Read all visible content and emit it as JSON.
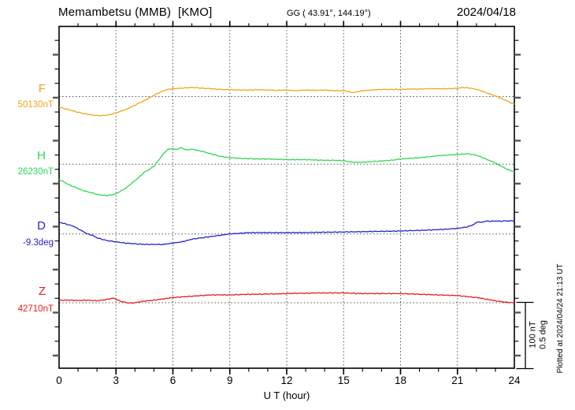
{
  "header": {
    "title": "Memambetsu (MMB)  [KMO]",
    "coords": "GG ( 43.91°, 144.19°)",
    "date": "2024/04/18"
  },
  "footer": {
    "plotted": "Plotted at 2024/04/24 21:13 UT"
  },
  "chart_data": {
    "type": "line",
    "title": "Memambetsu (MMB) [KMO] magnetogram 2024/04/18",
    "xlabel": "U T (hour)",
    "x_range": [
      0,
      24
    ],
    "x_ticks": [
      "0",
      "3",
      "6",
      "9",
      "12",
      "15",
      "18",
      "21",
      "24"
    ],
    "grid": "dotted vertical every 3 h, dotted horizontal at each channel baseline",
    "legend_position": "left channel labels",
    "scale_bar": {
      "nT_label": "100 nT",
      "deg_label": "0.5 deg",
      "span_nT": 100,
      "span_deg": 0.5
    },
    "series": [
      {
        "name": "F",
        "unit": "nT",
        "base": 50130,
        "base_label": "50130nT",
        "color": "#f2a41c",
        "points": [
          [
            0,
            50114
          ],
          [
            0.25,
            50112
          ],
          [
            0.5,
            50110
          ],
          [
            0.75,
            50108
          ],
          [
            1,
            50106
          ],
          [
            1.25,
            50104.5
          ],
          [
            1.5,
            50103
          ],
          [
            1.75,
            50102
          ],
          [
            2,
            50101
          ],
          [
            2.25,
            50101
          ],
          [
            2.5,
            50101.5
          ],
          [
            2.75,
            50103
          ],
          [
            3,
            50105
          ],
          [
            3.25,
            50107.5
          ],
          [
            3.5,
            50110
          ],
          [
            3.75,
            50113.5
          ],
          [
            4,
            50117
          ],
          [
            4.25,
            50120.5
          ],
          [
            4.5,
            50124
          ],
          [
            4.75,
            50128
          ],
          [
            5,
            50132
          ],
          [
            5.25,
            50135.5
          ],
          [
            5.5,
            50139
          ],
          [
            5.75,
            50141
          ],
          [
            6,
            50142
          ],
          [
            6.25,
            50142.5
          ],
          [
            6.5,
            50143
          ],
          [
            6.75,
            50143.5
          ],
          [
            7,
            50144
          ],
          [
            7.25,
            50143.5
          ],
          [
            7.5,
            50143
          ],
          [
            7.75,
            50142.5
          ],
          [
            8,
            50142
          ],
          [
            8.25,
            50141.5
          ],
          [
            8.5,
            50141
          ],
          [
            9,
            50140.5
          ],
          [
            9.5,
            50140
          ],
          [
            10,
            50140
          ],
          [
            10.5,
            50140.5
          ],
          [
            11,
            50140
          ],
          [
            11.5,
            50139.5
          ],
          [
            12,
            50140
          ],
          [
            12.5,
            50139
          ],
          [
            13,
            50140
          ],
          [
            13.5,
            50139.5
          ],
          [
            14,
            50140
          ],
          [
            14.5,
            50139
          ],
          [
            15,
            50139
          ],
          [
            15.25,
            50137.5
          ],
          [
            15.5,
            50136
          ],
          [
            15.75,
            50137.5
          ],
          [
            16,
            50139
          ],
          [
            16.5,
            50140
          ],
          [
            17,
            50141
          ],
          [
            17.5,
            50141
          ],
          [
            18,
            50141
          ],
          [
            18.5,
            50141.5
          ],
          [
            19,
            50141.5
          ],
          [
            19.5,
            50142
          ],
          [
            20,
            50142
          ],
          [
            20.5,
            50142
          ],
          [
            21,
            50142.5
          ],
          [
            21.25,
            50144
          ],
          [
            21.5,
            50143.5
          ],
          [
            21.75,
            50142.5
          ],
          [
            22,
            50141
          ],
          [
            22.25,
            50139
          ],
          [
            22.5,
            50136
          ],
          [
            22.75,
            50133.5
          ],
          [
            23,
            50131
          ],
          [
            23.25,
            50128
          ],
          [
            23.5,
            50125
          ],
          [
            23.75,
            50121.5
          ],
          [
            24,
            50118
          ]
        ]
      },
      {
        "name": "H",
        "unit": "nT",
        "base": 26230,
        "base_label": "26230nT",
        "color": "#2dd854",
        "points": [
          [
            0,
            26207
          ],
          [
            0.25,
            26203
          ],
          [
            0.5,
            26199
          ],
          [
            0.75,
            26196
          ],
          [
            1,
            26193
          ],
          [
            1.25,
            26190
          ],
          [
            1.5,
            26188
          ],
          [
            1.75,
            26186
          ],
          [
            2,
            26184
          ],
          [
            2.25,
            26183
          ],
          [
            2.5,
            26182
          ],
          [
            2.75,
            26183
          ],
          [
            3,
            26185
          ],
          [
            3.25,
            26189
          ],
          [
            3.5,
            26193
          ],
          [
            3.75,
            26199
          ],
          [
            4,
            26205
          ],
          [
            4.25,
            26211
          ],
          [
            4.5,
            26218
          ],
          [
            4.75,
            26222
          ],
          [
            5,
            26227
          ],
          [
            5.25,
            26236
          ],
          [
            5.5,
            26246
          ],
          [
            5.75,
            26253
          ],
          [
            6,
            26254
          ],
          [
            6.1,
            26252.5
          ],
          [
            6.25,
            26253
          ],
          [
            6.4,
            26255
          ],
          [
            6.5,
            26255
          ],
          [
            6.6,
            26253
          ],
          [
            6.75,
            26252
          ],
          [
            7,
            26253
          ],
          [
            7.25,
            26251.5
          ],
          [
            7.5,
            26250
          ],
          [
            7.75,
            26248
          ],
          [
            8,
            26246
          ],
          [
            8.5,
            26242
          ],
          [
            9,
            26240
          ],
          [
            9.5,
            26239
          ],
          [
            10,
            26238.5
          ],
          [
            10.5,
            26238
          ],
          [
            11,
            26238
          ],
          [
            11.5,
            26237.5
          ],
          [
            12,
            26237
          ],
          [
            12.5,
            26237
          ],
          [
            13,
            26237
          ],
          [
            13.5,
            26236.5
          ],
          [
            14,
            26236
          ],
          [
            14.5,
            26236
          ],
          [
            15,
            26235.5
          ],
          [
            15.25,
            26234
          ],
          [
            15.5,
            26233
          ],
          [
            16,
            26233
          ],
          [
            16.5,
            26234
          ],
          [
            17,
            26235
          ],
          [
            17.5,
            26236
          ],
          [
            18,
            26238
          ],
          [
            18.5,
            26239
          ],
          [
            19,
            26240
          ],
          [
            19.5,
            26241.5
          ],
          [
            20,
            26243
          ],
          [
            20.5,
            26244
          ],
          [
            21,
            26245
          ],
          [
            21.25,
            26245.5
          ],
          [
            21.5,
            26246
          ],
          [
            21.75,
            26245
          ],
          [
            22,
            26244
          ],
          [
            22.25,
            26241
          ],
          [
            22.5,
            26238
          ],
          [
            22.75,
            26235
          ],
          [
            23,
            26232
          ],
          [
            23.25,
            26228
          ],
          [
            23.5,
            26224
          ],
          [
            23.75,
            26221
          ],
          [
            24,
            26218
          ]
        ]
      },
      {
        "name": "D",
        "unit": "deg",
        "base": -9.3,
        "base_label": "-9.3deg",
        "color": "#2524c4",
        "points": [
          [
            0,
            -9.21
          ],
          [
            0.25,
            -9.22
          ],
          [
            0.5,
            -9.23
          ],
          [
            0.75,
            -9.24
          ],
          [
            1,
            -9.26
          ],
          [
            1.25,
            -9.28
          ],
          [
            1.5,
            -9.3
          ],
          [
            1.75,
            -9.31
          ],
          [
            2,
            -9.33
          ],
          [
            2.25,
            -9.34
          ],
          [
            2.5,
            -9.35
          ],
          [
            3,
            -9.36
          ],
          [
            3.5,
            -9.37
          ],
          [
            4,
            -9.375
          ],
          [
            4.5,
            -9.38
          ],
          [
            5,
            -9.38
          ],
          [
            5.5,
            -9.38
          ],
          [
            6,
            -9.37
          ],
          [
            6.5,
            -9.36
          ],
          [
            7,
            -9.34
          ],
          [
            7.5,
            -9.33
          ],
          [
            8,
            -9.32
          ],
          [
            8.5,
            -9.31
          ],
          [
            9,
            -9.3
          ],
          [
            9.5,
            -9.295
          ],
          [
            10,
            -9.29
          ],
          [
            10.5,
            -9.29
          ],
          [
            11,
            -9.29
          ],
          [
            11.5,
            -9.29
          ],
          [
            12,
            -9.29
          ],
          [
            12.5,
            -9.29
          ],
          [
            13,
            -9.29
          ],
          [
            13.5,
            -9.288
          ],
          [
            14,
            -9.287
          ],
          [
            14.5,
            -9.286
          ],
          [
            15,
            -9.285
          ],
          [
            15.5,
            -9.284
          ],
          [
            16,
            -9.283
          ],
          [
            16.5,
            -9.281
          ],
          [
            17,
            -9.28
          ],
          [
            17.5,
            -9.279
          ],
          [
            18,
            -9.277
          ],
          [
            18.5,
            -9.275
          ],
          [
            19,
            -9.273
          ],
          [
            19.5,
            -9.27
          ],
          [
            20,
            -9.267
          ],
          [
            20.5,
            -9.263
          ],
          [
            21,
            -9.257
          ],
          [
            21.25,
            -9.252
          ],
          [
            21.5,
            -9.247
          ],
          [
            21.75,
            -9.235
          ],
          [
            22,
            -9.215
          ],
          [
            22.1,
            -9.203
          ],
          [
            22.2,
            -9.213
          ],
          [
            22.35,
            -9.208
          ],
          [
            22.5,
            -9.202
          ],
          [
            22.75,
            -9.203
          ],
          [
            23,
            -9.201
          ],
          [
            23.25,
            -9.203
          ],
          [
            23.5,
            -9.2
          ],
          [
            23.75,
            -9.201
          ],
          [
            24,
            -9.199
          ]
        ]
      },
      {
        "name": "Z",
        "unit": "nT",
        "base": 42710,
        "base_label": "42710nT",
        "color": "#e51d1d",
        "points": [
          [
            0,
            42714
          ],
          [
            0.5,
            42714
          ],
          [
            1,
            42713.5
          ],
          [
            1.5,
            42714
          ],
          [
            2,
            42713
          ],
          [
            2.25,
            42714
          ],
          [
            2.5,
            42715
          ],
          [
            2.75,
            42716.5
          ],
          [
            2.9,
            42717
          ],
          [
            3.1,
            42714
          ],
          [
            3.3,
            42712
          ],
          [
            3.6,
            42710
          ],
          [
            3.8,
            42709.5
          ],
          [
            4,
            42710
          ],
          [
            4.25,
            42711.5
          ],
          [
            4.5,
            42712.5
          ],
          [
            5,
            42714
          ],
          [
            5.5,
            42716
          ],
          [
            6,
            42718
          ],
          [
            6.5,
            42719
          ],
          [
            7,
            42720
          ],
          [
            7.5,
            42721
          ],
          [
            8,
            42722
          ],
          [
            8.5,
            42722
          ],
          [
            9,
            42722
          ],
          [
            9.5,
            42722.5
          ],
          [
            10,
            42723
          ],
          [
            10.5,
            42723
          ],
          [
            11,
            42723.5
          ],
          [
            11.5,
            42723.5
          ],
          [
            12,
            42724
          ],
          [
            12.5,
            42724.5
          ],
          [
            13,
            42724.5
          ],
          [
            13.5,
            42725
          ],
          [
            14,
            42725
          ],
          [
            14.5,
            42725
          ],
          [
            15,
            42725
          ],
          [
            15.5,
            42724.5
          ],
          [
            16,
            42724
          ],
          [
            16.5,
            42724
          ],
          [
            17,
            42724
          ],
          [
            17.5,
            42724
          ],
          [
            18,
            42724
          ],
          [
            18.5,
            42723.5
          ],
          [
            19,
            42723
          ],
          [
            19.5,
            42722.5
          ],
          [
            20,
            42722
          ],
          [
            20.5,
            42721.5
          ],
          [
            21,
            42721
          ],
          [
            21.5,
            42719.5
          ],
          [
            22,
            42718
          ],
          [
            22.25,
            42717
          ],
          [
            22.5,
            42715.5
          ],
          [
            22.75,
            42714.5
          ],
          [
            23,
            42713
          ],
          [
            23.25,
            42712
          ],
          [
            23.5,
            42711
          ],
          [
            23.75,
            42710.5
          ],
          [
            24,
            42710
          ]
        ]
      }
    ]
  }
}
